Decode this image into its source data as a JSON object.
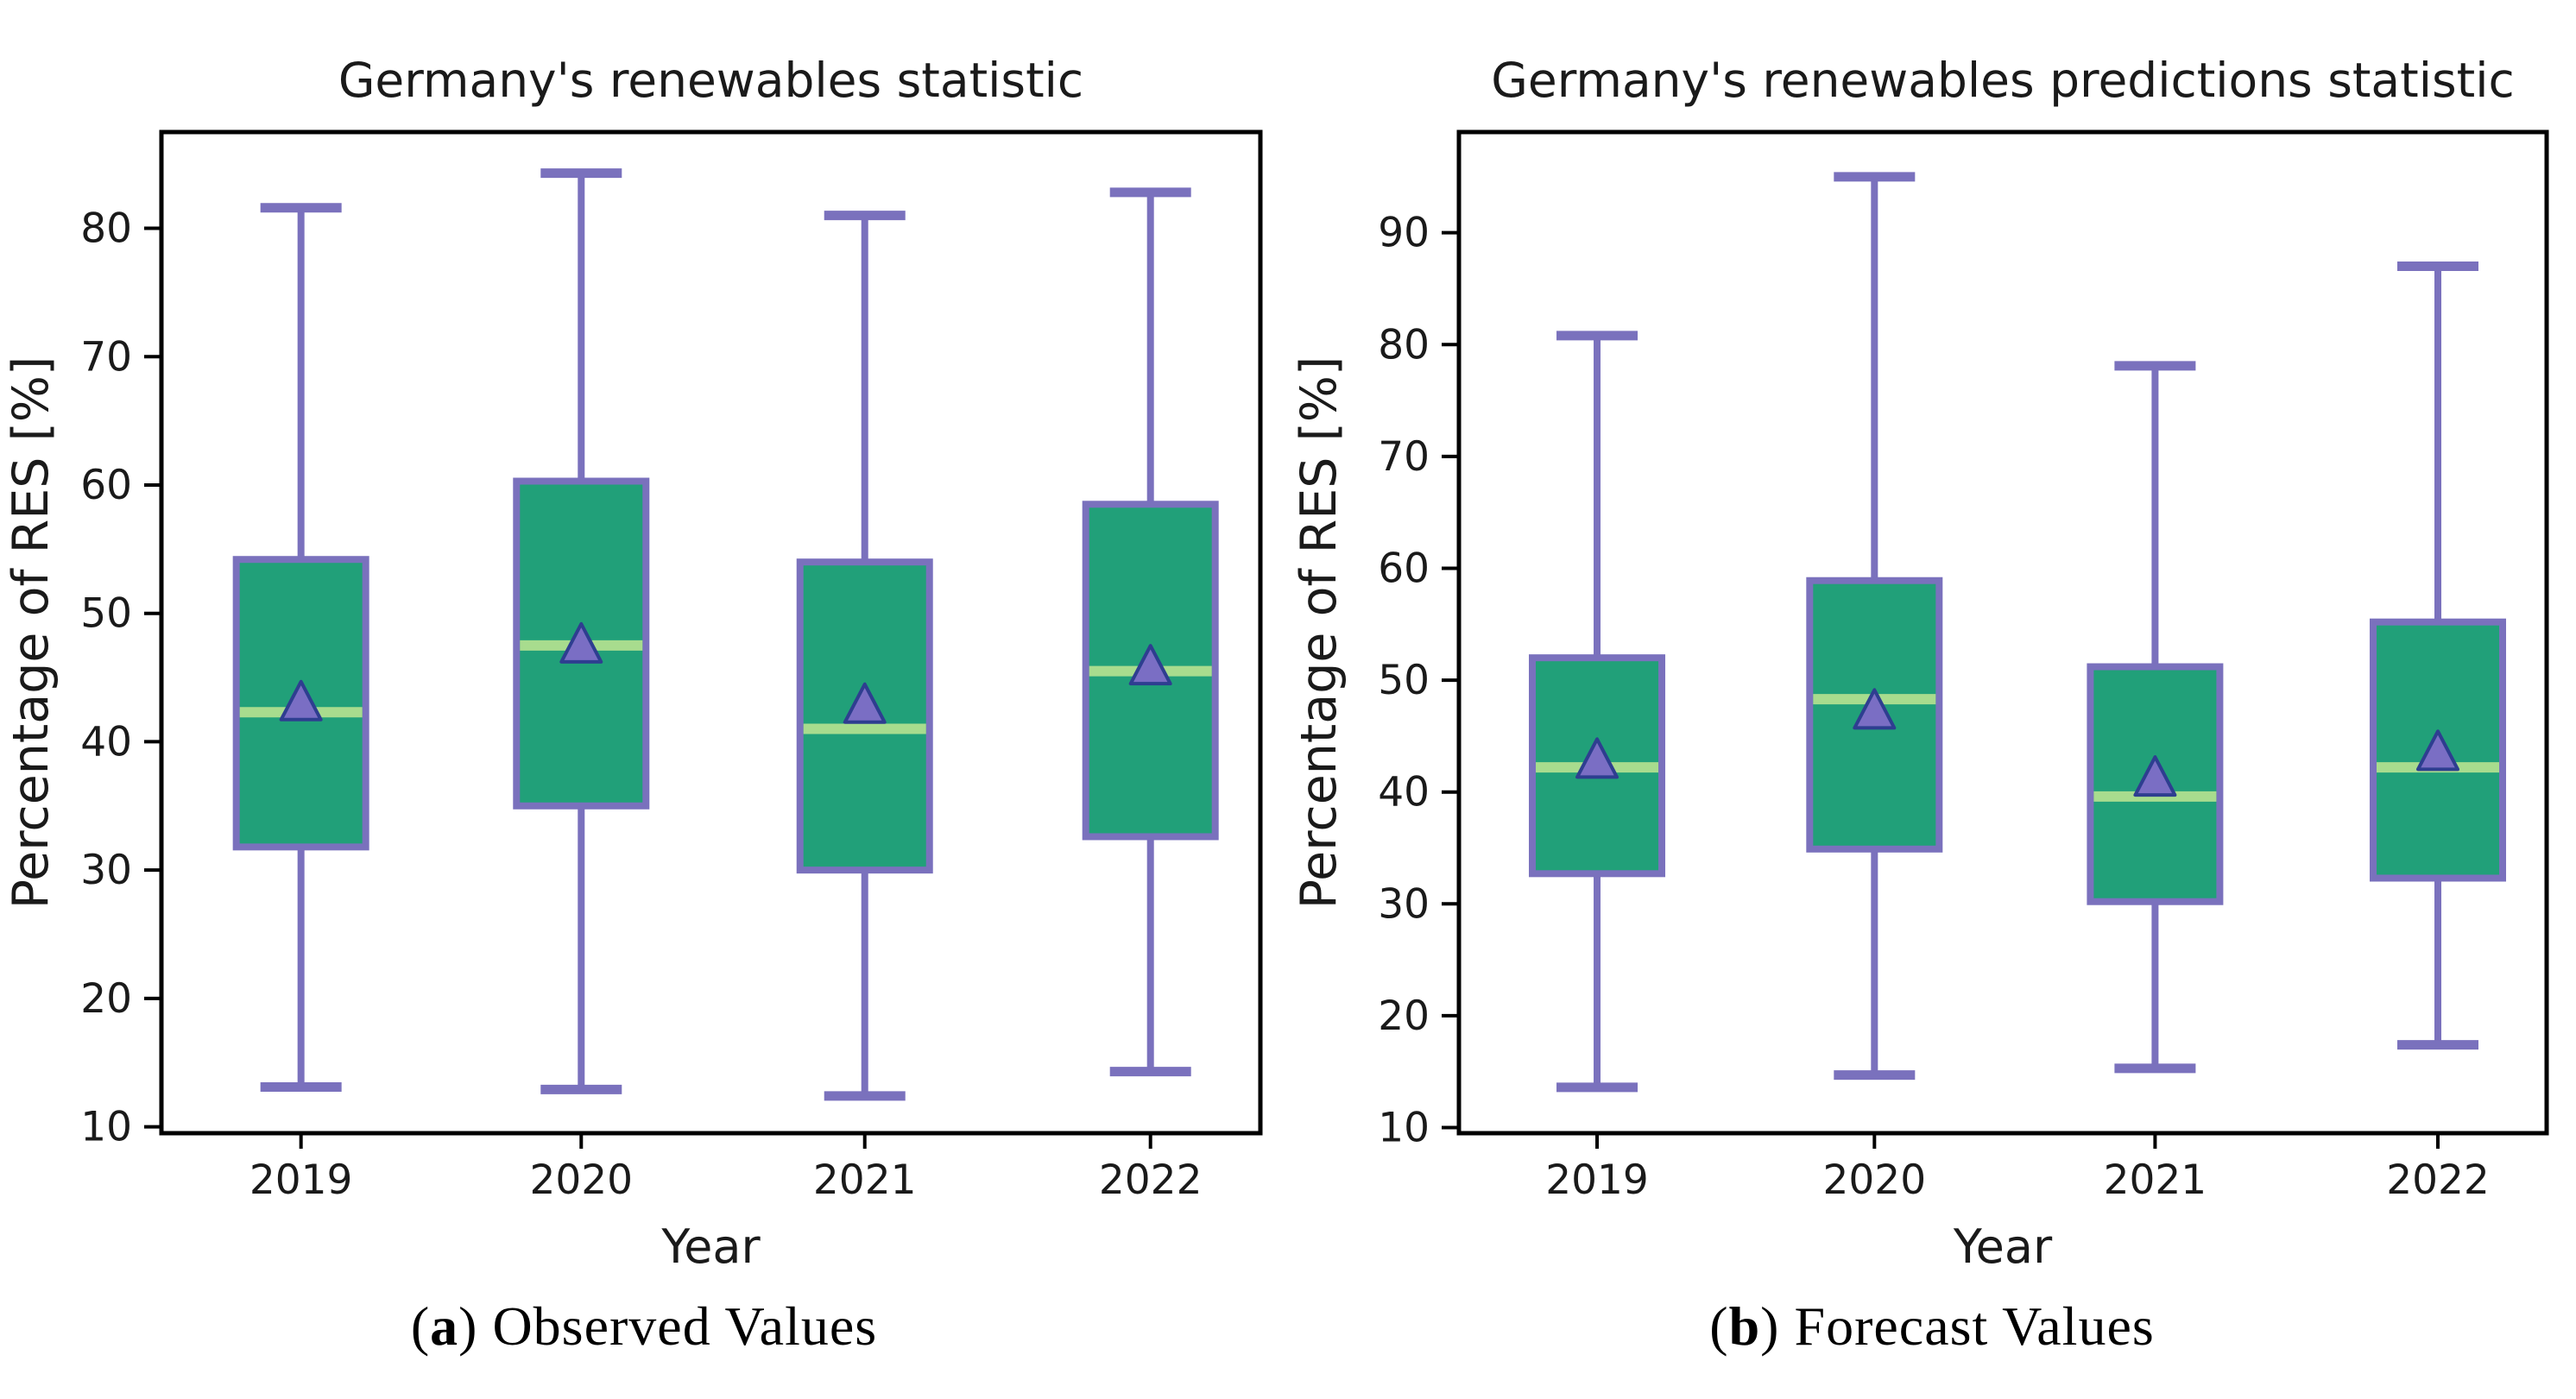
{
  "figure": {
    "background": "#ffffff",
    "captions": [
      {
        "prefix": "(",
        "tag": "a",
        "suffix": ") ",
        "text": "Observed Values"
      },
      {
        "prefix": "(",
        "tag": "b",
        "suffix": ") ",
        "text": "Forecast Values"
      }
    ]
  },
  "styles": {
    "box_fill": "#21a079",
    "box_edge": "#7a71bd",
    "whisker_color": "#7a71bd",
    "median_color": "#a8dc8e",
    "mean_fill": "#7a6ec4",
    "mean_edge": "#2e3e90",
    "axis_color": "#000000",
    "text_color": "#1a1a1a"
  },
  "chart_data": [
    {
      "type": "box",
      "title": "Germany's renewables statistic",
      "xlabel": "Year",
      "ylabel": "Percentage of RES [%]",
      "categories": [
        "2019",
        "2020",
        "2021",
        "2022"
      ],
      "yticks": [
        10,
        20,
        30,
        40,
        50,
        60,
        70,
        80
      ],
      "ylim": [
        9.5,
        87.5
      ],
      "grid": false,
      "legend": "none",
      "series": [
        {
          "year": "2019",
          "whislo": 13.1,
          "q1": 31.8,
          "med": 42.3,
          "mean": 43.0,
          "q3": 54.2,
          "whishi": 81.6
        },
        {
          "year": "2020",
          "whislo": 12.9,
          "q1": 35.0,
          "med": 47.5,
          "mean": 47.5,
          "q3": 60.3,
          "whishi": 84.3
        },
        {
          "year": "2021",
          "whislo": 12.4,
          "q1": 30.0,
          "med": 41.0,
          "mean": 42.8,
          "q3": 54.0,
          "whishi": 81.0
        },
        {
          "year": "2022",
          "whislo": 14.3,
          "q1": 32.6,
          "med": 45.5,
          "mean": 45.8,
          "q3": 58.5,
          "whishi": 82.8
        }
      ]
    },
    {
      "type": "box",
      "title": "Germany's renewables predictions statistic",
      "xlabel": "Year",
      "ylabel": "Percentage of RES [%]",
      "categories": [
        "2019",
        "2020",
        "2021",
        "2022"
      ],
      "yticks": [
        10,
        20,
        30,
        40,
        50,
        60,
        70,
        80,
        90
      ],
      "ylim": [
        9.5,
        99.0
      ],
      "grid": false,
      "legend": "none",
      "series": [
        {
          "year": "2019",
          "whislo": 13.6,
          "q1": 32.7,
          "med": 42.2,
          "mean": 42.8,
          "q3": 52.0,
          "whishi": 80.8
        },
        {
          "year": "2020",
          "whislo": 14.7,
          "q1": 34.9,
          "med": 48.3,
          "mean": 47.2,
          "q3": 58.9,
          "whishi": 95.0
        },
        {
          "year": "2021",
          "whislo": 15.3,
          "q1": 30.2,
          "med": 39.6,
          "mean": 41.2,
          "q3": 51.2,
          "whishi": 78.1
        },
        {
          "year": "2022",
          "whislo": 17.4,
          "q1": 32.3,
          "med": 42.2,
          "mean": 43.5,
          "q3": 55.2,
          "whishi": 87.0
        }
      ]
    }
  ]
}
